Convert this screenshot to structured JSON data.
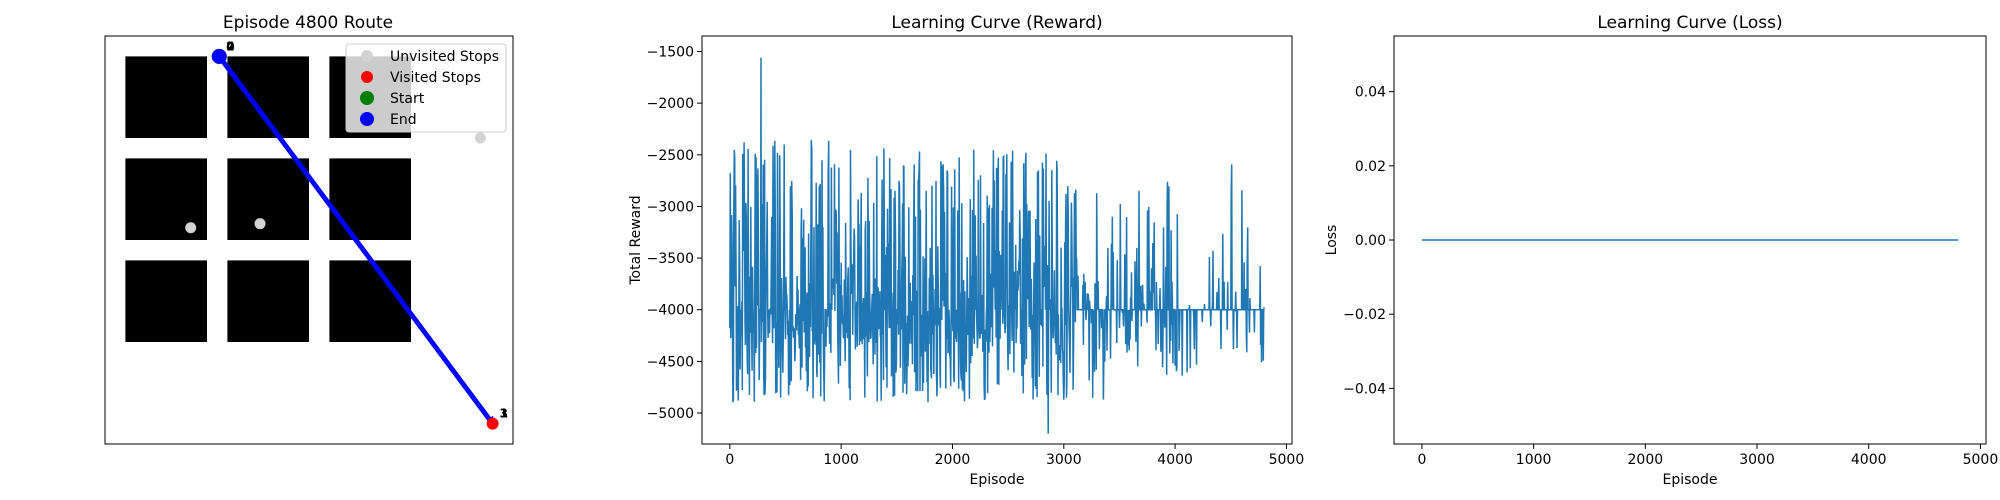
{
  "chart_data": [
    {
      "type": "scatter",
      "title": "Episode 4800 Route",
      "axes_visible": false,
      "xlim": [
        0,
        10
      ],
      "ylim": [
        0,
        10
      ],
      "blocks": [
        {
          "x": 0.5,
          "y": 7.5,
          "w": 2,
          "h": 2
        },
        {
          "x": 3.0,
          "y": 7.5,
          "w": 2,
          "h": 2
        },
        {
          "x": 5.5,
          "y": 7.5,
          "w": 2,
          "h": 2
        },
        {
          "x": 0.5,
          "y": 5.0,
          "w": 2,
          "h": 2
        },
        {
          "x": 3.0,
          "y": 5.0,
          "w": 2,
          "h": 2
        },
        {
          "x": 5.5,
          "y": 5.0,
          "w": 2,
          "h": 2
        },
        {
          "x": 0.5,
          "y": 2.5,
          "w": 2,
          "h": 2
        },
        {
          "x": 3.0,
          "y": 2.5,
          "w": 2,
          "h": 2
        },
        {
          "x": 5.5,
          "y": 2.5,
          "w": 2,
          "h": 2
        }
      ],
      "unvisited_stops": [
        {
          "x": 9.2,
          "y": 7.5
        },
        {
          "x": 2.1,
          "y": 5.3
        },
        {
          "x": 3.8,
          "y": 5.4
        }
      ],
      "visited_stops": [
        {
          "x": 9.5,
          "y": 0.5,
          "label": "1"
        },
        {
          "x": 2.8,
          "y": 9.5,
          "label": "2"
        }
      ],
      "start": {
        "x": 2.8,
        "y": 9.5
      },
      "end": {
        "x": 2.8,
        "y": 9.5
      },
      "route": [
        {
          "x": 2.8,
          "y": 9.5
        },
        {
          "x": 9.5,
          "y": 0.5
        },
        {
          "x": 2.8,
          "y": 9.5
        }
      ],
      "point_labels": [
        {
          "text": "3",
          "x": 9.5,
          "y": 0.5
        },
        {
          "text": "1",
          "x": 9.5,
          "y": 0.5
        },
        {
          "text": "0",
          "x": 2.8,
          "y": 9.5
        },
        {
          "text": "2",
          "x": 2.8,
          "y": 9.5
        },
        {
          "text": "4",
          "x": 2.8,
          "y": 9.5
        }
      ],
      "legend": {
        "position": "upper right",
        "entries": [
          {
            "label": "Unvisited Stops",
            "color": "#d3d3d3"
          },
          {
            "label": "Visited Stops",
            "color": "#ff0000"
          },
          {
            "label": "Start",
            "color": "#008000"
          },
          {
            "label": "End",
            "color": "#0000ff"
          }
        ]
      },
      "colors": {
        "route": "#0000ff",
        "block": "#000000"
      }
    },
    {
      "type": "line",
      "title": "Learning Curve (Reward)",
      "xlabel": "Episode",
      "ylabel": "Total Reward",
      "xlim": [
        -250,
        5050
      ],
      "ylim": [
        -5300,
        -1350
      ],
      "xticks": [
        0,
        1000,
        2000,
        3000,
        4000,
        5000
      ],
      "yticks": [
        -5000,
        -4500,
        -4000,
        -3500,
        -3000,
        -2500,
        -2000,
        -1500
      ],
      "series": [
        {
          "color": "#1f77b4",
          "n_episodes": 4800,
          "baseline": -4000,
          "min": -5200,
          "max": -1560
        }
      ]
    },
    {
      "type": "line",
      "title": "Learning Curve (Loss)",
      "xlabel": "Episode",
      "ylabel": "Loss",
      "xlim": [
        -250,
        5050
      ],
      "ylim": [
        -0.055,
        0.055
      ],
      "xticks": [
        0,
        1000,
        2000,
        3000,
        4000,
        5000
      ],
      "yticks": [
        -0.04,
        -0.02,
        0.0,
        0.02,
        0.04
      ],
      "ytick_labels": [
        "−0.04",
        "−0.02",
        "0.00",
        "0.02",
        "0.04"
      ],
      "series": [
        {
          "color": "#1f77b4",
          "x": [
            0,
            4800
          ],
          "y": [
            0,
            0
          ]
        }
      ]
    }
  ]
}
